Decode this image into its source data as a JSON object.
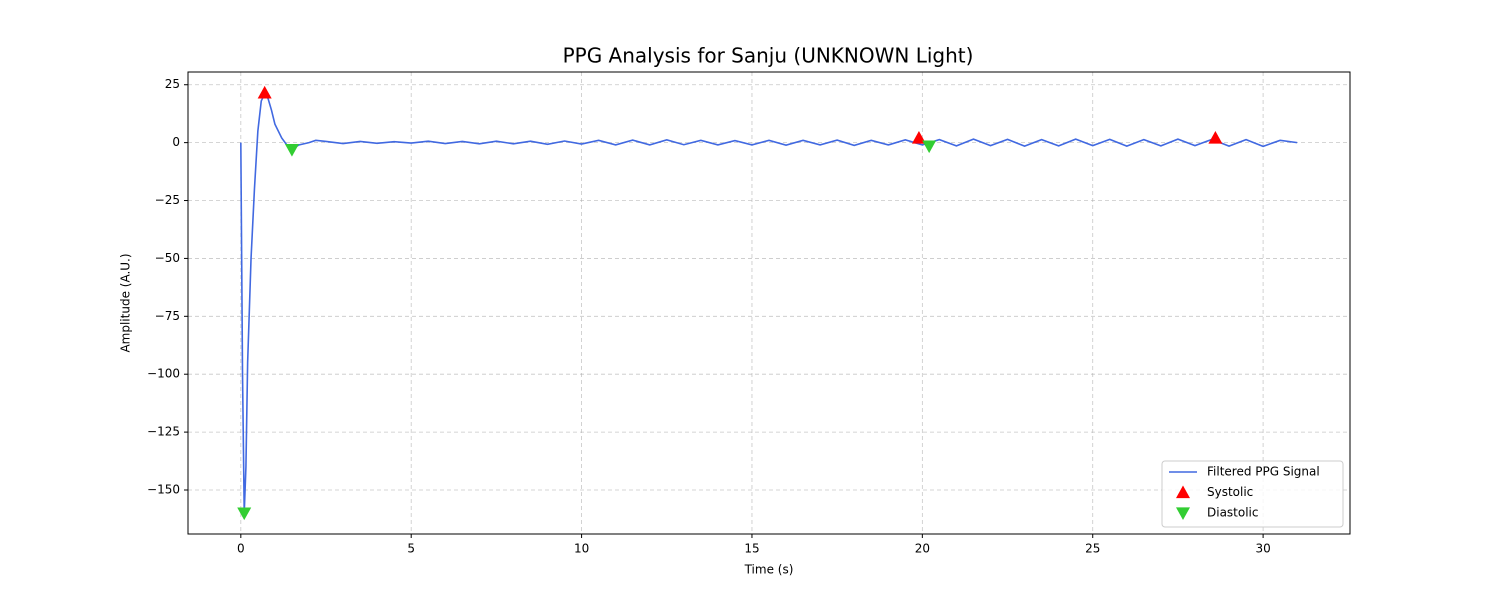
{
  "chart_data": {
    "type": "line",
    "title": "PPG Analysis for Sanju (UNKNOWN Light)",
    "x_label": "Time (s)",
    "y_label": "Amplitude (A.U.)",
    "xlim": [
      -1.55,
      32.55
    ],
    "ylim": [
      -169,
      30.5
    ],
    "xticks": [
      0,
      5,
      10,
      15,
      20,
      25,
      30
    ],
    "yticks": [
      25,
      0,
      {
        "value": -25,
        "label": "−25"
      },
      {
        "value": -50,
        "label": "−50"
      },
      {
        "value": -75,
        "label": "−75"
      },
      {
        "value": -100,
        "label": "−100"
      },
      {
        "value": -125,
        "label": "−125"
      },
      {
        "value": -150,
        "label": "−150"
      }
    ],
    "grid": true,
    "legend": "lower right",
    "series": [
      {
        "name": "Filtered PPG Signal",
        "type": "line",
        "color": "#4169e1",
        "x": [
          0,
          0.05,
          0.1,
          0.15,
          0.2,
          0.3,
          0.4,
          0.5,
          0.6,
          0.7,
          0.8,
          0.9,
          1.0,
          1.2,
          1.4,
          1.5,
          1.7,
          2.0,
          2.2,
          2.5,
          3,
          3.5,
          4,
          4.5,
          5,
          5.5,
          6,
          6.5,
          7,
          7.5,
          8,
          8.5,
          9,
          9.5,
          10,
          10.5,
          11,
          11.5,
          12,
          12.5,
          13,
          13.5,
          14,
          14.5,
          15,
          15.5,
          16,
          16.5,
          17,
          17.5,
          18,
          18.5,
          19,
          19.5,
          20,
          20.5,
          21,
          21.5,
          22,
          22.5,
          23,
          23.5,
          24,
          24.5,
          25,
          25.5,
          26,
          26.5,
          27,
          27.5,
          28,
          28.5,
          29,
          29.5,
          30,
          30.5,
          31
        ],
        "values": [
          0,
          -100,
          -160,
          -140,
          -95,
          -50,
          -20,
          5,
          18,
          21,
          19,
          14,
          8,
          2,
          -2,
          -3,
          -1,
          0,
          1,
          0.5,
          -0.4,
          0.5,
          -0.3,
          0.4,
          -0.2,
          0.6,
          -0.4,
          0.5,
          -0.5,
          0.6,
          -0.5,
          0.6,
          -0.7,
          0.7,
          -0.6,
          1,
          -1,
          1.1,
          -1,
          1.2,
          -0.9,
          1,
          -1,
          0.9,
          -1,
          1,
          -1.1,
          1,
          -1,
          1.1,
          -1.2,
          1,
          -1,
          1.2,
          -1,
          1.3,
          -1.4,
          1.5,
          -1.3,
          1.4,
          -1.5,
          1.3,
          -1.4,
          1.5,
          -1.3,
          1.4,
          -1.5,
          1.3,
          -1.4,
          1.5,
          -1.3,
          1.4,
          -1.5,
          1.3,
          -1.6,
          1,
          0
        ]
      },
      {
        "name": "Systolic",
        "type": "scatter",
        "marker": "triangle-up",
        "color": "#ff0000",
        "x": [
          0.7,
          19.9,
          28.6
        ],
        "values": [
          21.5,
          2,
          2
        ]
      },
      {
        "name": "Diastolic",
        "type": "scatter",
        "marker": "triangle-down",
        "color": "#32cd32",
        "x": [
          0.1,
          1.5,
          20.2
        ],
        "values": [
          -160,
          -3,
          -1.5
        ]
      }
    ]
  }
}
